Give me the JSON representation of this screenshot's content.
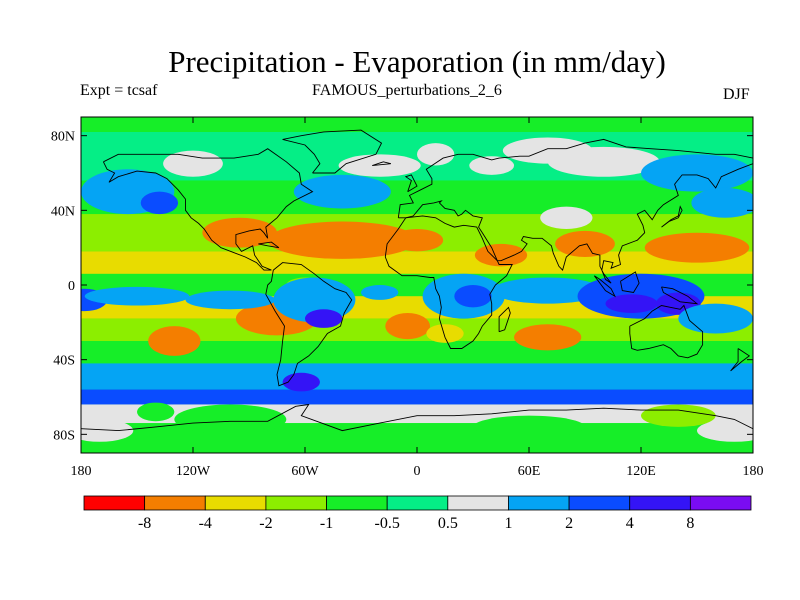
{
  "header": {
    "title": "Precipitation - Evaporation (in mm/day)",
    "experiment": "Expt = tcsaf",
    "subtitle": "FAMOUS_perturbations_2_6",
    "season": "DJF"
  },
  "axes": {
    "lat_ticks": [
      {
        "value": 80,
        "label": "80N"
      },
      {
        "value": 40,
        "label": "40N"
      },
      {
        "value": 0,
        "label": "0"
      },
      {
        "value": -40,
        "label": "40S"
      },
      {
        "value": -80,
        "label": "80S"
      }
    ],
    "lon_ticks": [
      {
        "value": -180,
        "label": "180"
      },
      {
        "value": -120,
        "label": "120W"
      },
      {
        "value": -60,
        "label": "60W"
      },
      {
        "value": 0,
        "label": "0"
      },
      {
        "value": 60,
        "label": "60E"
      },
      {
        "value": 120,
        "label": "120E"
      },
      {
        "value": 180,
        "label": "180"
      }
    ],
    "lat_range": [
      -90,
      90
    ],
    "lon_range": [
      -180,
      180
    ]
  },
  "colorbar": {
    "colors": [
      "#ff0000",
      "#f47e00",
      "#e8dc00",
      "#8cee00",
      "#16ee28",
      "#05ee86",
      "#e4e4e4",
      "#05a4f4",
      "#0a4cff",
      "#3414f6",
      "#7a0cf2"
    ],
    "labels": [
      "-8",
      "-4",
      "-2",
      "-1",
      "-0.5",
      "0.5",
      "1",
      "2",
      "4",
      "8"
    ]
  },
  "map": {
    "background": "#16ee28",
    "coastline_color": "#000000"
  }
}
